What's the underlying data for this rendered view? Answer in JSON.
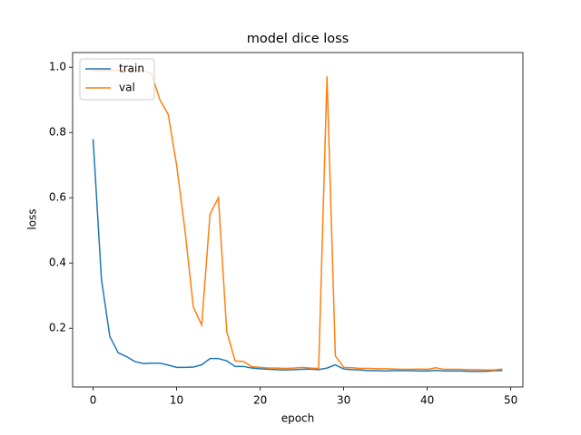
{
  "chart_data": {
    "type": "line",
    "title": "model dice loss",
    "x_label": "epoch",
    "y_label": "loss",
    "x": [
      0,
      1,
      2,
      3,
      4,
      5,
      6,
      7,
      8,
      9,
      10,
      11,
      12,
      13,
      14,
      15,
      16,
      17,
      18,
      19,
      20,
      21,
      22,
      23,
      24,
      25,
      26,
      27,
      28,
      29,
      30,
      31,
      32,
      33,
      34,
      35,
      36,
      37,
      38,
      39,
      40,
      41,
      42,
      43,
      44,
      45,
      46,
      47,
      48,
      49
    ],
    "series": [
      {
        "name": "train",
        "color": "#1f77b4",
        "values": [
          0.78,
          0.35,
          0.175,
          0.125,
          0.113,
          0.098,
          0.092,
          0.093,
          0.093,
          0.087,
          0.08,
          0.08,
          0.081,
          0.088,
          0.107,
          0.107,
          0.1,
          0.083,
          0.083,
          0.078,
          0.076,
          0.074,
          0.073,
          0.072,
          0.073,
          0.074,
          0.075,
          0.073,
          0.078,
          0.088,
          0.075,
          0.073,
          0.072,
          0.07,
          0.07,
          0.069,
          0.07,
          0.07,
          0.07,
          0.069,
          0.069,
          0.071,
          0.069,
          0.069,
          0.069,
          0.068,
          0.068,
          0.068,
          0.07,
          0.07
        ]
      },
      {
        "name": "val",
        "color": "#ff7f0e",
        "values": [
          0.99,
          0.99,
          0.99,
          0.99,
          0.99,
          0.99,
          0.99,
          0.98,
          0.9,
          0.855,
          0.7,
          0.5,
          0.265,
          0.21,
          0.55,
          0.6,
          0.19,
          0.1,
          0.098,
          0.082,
          0.08,
          0.078,
          0.078,
          0.077,
          0.078,
          0.08,
          0.078,
          0.077,
          0.972,
          0.115,
          0.08,
          0.079,
          0.077,
          0.077,
          0.076,
          0.076,
          0.075,
          0.074,
          0.074,
          0.075,
          0.074,
          0.079,
          0.074,
          0.074,
          0.074,
          0.073,
          0.073,
          0.072,
          0.072,
          0.075
        ]
      }
    ],
    "xlim": [
      -2.45,
      51.45
    ],
    "ylim": [
      0.02,
      1.045
    ],
    "xticks": [
      0,
      10,
      20,
      30,
      40,
      50
    ],
    "yticks": [
      0.2,
      0.4,
      0.6,
      0.8,
      {
        "value": 1.0,
        "label": "1.0"
      }
    ],
    "legend": "upper left"
  }
}
